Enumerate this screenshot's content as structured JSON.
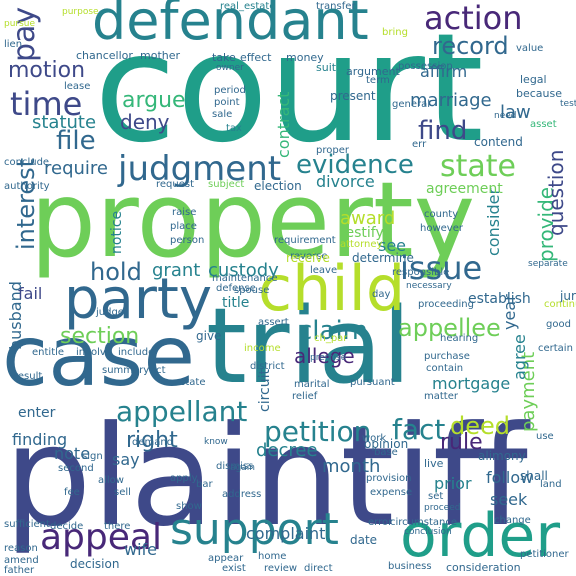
{
  "palette": {
    "dark_purple": "#440154",
    "purple": "#482878",
    "indigo": "#3e4989",
    "blue": "#31688e",
    "steel": "#26828e",
    "teal": "#1f9e89",
    "green": "#35b779",
    "lime": "#6ece58",
    "yellow_green": "#b5de2b",
    "yellow": "#fde725"
  },
  "words": {
    "court": "court",
    "plaintiff": "plaintiff",
    "property": "property",
    "defendant": "defendant",
    "case": "case",
    "trial": "trial",
    "party": "party",
    "child": "child",
    "order": "order",
    "support": "support",
    "appeal": "appeal",
    "action": "action",
    "record": "record",
    "judgment": "judgment",
    "evidence": "evidence",
    "state": "state",
    "time": "time",
    "motion": "motion",
    "pay": "pay",
    "file": "file",
    "find": "find",
    "issue": "issue",
    "claim": "claim",
    "appellee": "appellee",
    "appellant": "appellant",
    "petition": "petition",
    "fact": "fact",
    "deed": "deed",
    "right": "right",
    "section": "section",
    "hold": "hold",
    "interest": "interest",
    "provide": "provide",
    "question": "question",
    "argue": "argue",
    "deny": "deny",
    "marriage": "marriage",
    "law": "law",
    "statute": "statute",
    "contract": "contract",
    "require": "require",
    "divorce": "divorce",
    "consider": "consider",
    "year": "year",
    "grant": "grant",
    "custody": "custody",
    "award": "award",
    "testify": "testify",
    "notice": "notice",
    "see": "see",
    "payment": "payment",
    "mortgage": "mortgage",
    "agree": "agree",
    "circuit": "circuit",
    "allege": "allege",
    "rule": "rule",
    "decree": "decree",
    "month": "month",
    "finding": "finding",
    "note": "note",
    "enter": "enter",
    "say": "say",
    "complaint": "complaint",
    "follow": "follow",
    "seek": "seek",
    "prior": "prior",
    "husband": "husband",
    "fail": "fail",
    "wife": "wife",
    "title": "title",
    "sufficient": "sufficient",
    "transfer": "transfer",
    "real_estate": "real_estate",
    "chancellor": "chancellor",
    "mother": "mother",
    "take": "take",
    "effect": "effect",
    "money": "money",
    "owner": "owner",
    "lease": "lease",
    "period": "period",
    "point": "point",
    "suit": "suit",
    "term": "term",
    "sale": "sale",
    "tax": "tax",
    "present": "present",
    "argument": "argument",
    "affirm": "affirm",
    "contend": "contend",
    "possession": "possession",
    "general": "general",
    "value": "value",
    "legal": "legal",
    "because": "because",
    "asset": "asset",
    "testimony": "testimony",
    "bring": "bring",
    "need": "need",
    "err": "err",
    "conclude": "conclude",
    "authority": "authority",
    "request": "request",
    "subject": "subject",
    "election": "election",
    "agreement": "agreement",
    "raise": "raise",
    "place": "place",
    "person": "person",
    "attorney": "attorney",
    "county": "county",
    "however": "however",
    "reverse": "reverse",
    "receive": "receive",
    "determine": "determine",
    "leave": "leave",
    "maintenance": "maintenance",
    "requirement": "requirement",
    "spouse": "spouse",
    "defense": "defense",
    "establish": "establish",
    "responsible": "responsible",
    "necessary": "necessary",
    "proceeding": "proceeding",
    "hearing": "hearing",
    "jurisdiction": "jurisdiction",
    "continue": "continue",
    "separate": "separate",
    "good": "good",
    "judge": "judge",
    "assert": "assert",
    "day": "day",
    "income": "income",
    "give": "give",
    "entitle": "entitle",
    "involve": "involve",
    "include": "include",
    "district": "district",
    "ch_par": "ch_par",
    "premise": "premise",
    "purchase": "purchase",
    "contain": "contain",
    "certain": "certain",
    "result": "result",
    "summary": "summary",
    "act": "act",
    "estate": "estate",
    "marital": "marital",
    "relief": "relief",
    "pursuant": "pursuant",
    "matter": "matter",
    "dismiss": "dismiss",
    "bar": "bar",
    "apply": "apply",
    "show": "show",
    "address": "address",
    "again": "again",
    "work": "work",
    "base": "base",
    "opinion": "opinion",
    "alimony": "alimony",
    "shall": "shall",
    "land": "land",
    "live": "live",
    "provision": "provision",
    "set": "set",
    "proceed": "proceed",
    "expense": "expense",
    "conclusion": "conclusion",
    "change": "change",
    "petitioner": "petitioner",
    "error": "error",
    "circumstance": "circumstance",
    "business": "business",
    "consideration": "consideration",
    "direct": "direct",
    "home": "home",
    "review": "review",
    "appear": "appear",
    "exist": "exist",
    "date": "date",
    "demand": "demand",
    "know": "know",
    "sign": "sign",
    "second": "second",
    "sell": "sell",
    "fee": "fee",
    "decide": "decide",
    "there": "there",
    "decision": "decision",
    "reason": "reason",
    "amend": "amend",
    "father": "father",
    "lien": "lien",
    "purpose": "purpose",
    "use": "use",
    "allow": "allow",
    "proper": "proper",
    "pursue": "pursue"
  }
}
